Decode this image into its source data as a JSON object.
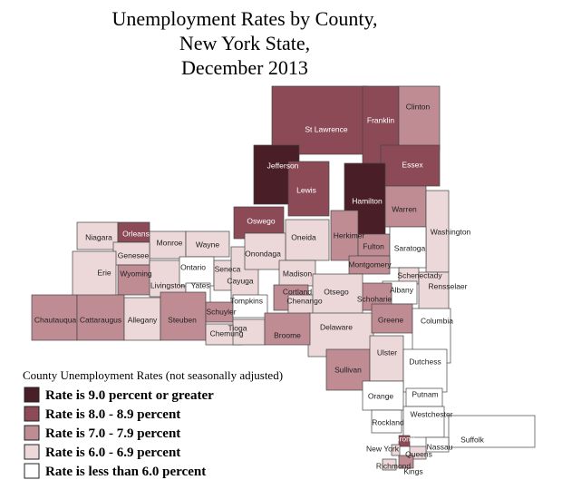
{
  "title_lines": [
    "Unemployment Rates by County,",
    "New York State,",
    "December 2013"
  ],
  "legend": {
    "title": "County Unemployment Rates (not seasonally adjusted)",
    "items": [
      {
        "label": "Rate is 9.0 percent or greater",
        "color": "#4a1e27"
      },
      {
        "label": "Rate is 8.0 - 8.9 percent",
        "color": "#8b4a55"
      },
      {
        "label": "Rate is 7.0 - 7.9 percent",
        "color": "#bf8c93"
      },
      {
        "label": "Rate is 6.0 - 6.9 percent",
        "color": "#ecd7d9"
      },
      {
        "label": "Rate is less than 6.0 percent",
        "color": "#ffffff"
      }
    ]
  },
  "counties": [
    {
      "name": "St Lawrence",
      "class": 1
    },
    {
      "name": "Franklin",
      "class": 1
    },
    {
      "name": "Clinton",
      "class": 2
    },
    {
      "name": "Essex",
      "class": 1
    },
    {
      "name": "Jefferson",
      "class": 0
    },
    {
      "name": "Lewis",
      "class": 1
    },
    {
      "name": "Hamilton",
      "class": 0
    },
    {
      "name": "Warren",
      "class": 2
    },
    {
      "name": "Washington",
      "class": 3
    },
    {
      "name": "Oswego",
      "class": 1
    },
    {
      "name": "Herkimer",
      "class": 2
    },
    {
      "name": "Oneida",
      "class": 3
    },
    {
      "name": "Fulton",
      "class": 2
    },
    {
      "name": "Saratoga",
      "class": 4
    },
    {
      "name": "Montgomery",
      "class": 2
    },
    {
      "name": "Schenectady",
      "class": 3
    },
    {
      "name": "Rensselaer",
      "class": 3
    },
    {
      "name": "Albany",
      "class": 4
    },
    {
      "name": "Schoharie",
      "class": 2
    },
    {
      "name": "Niagara",
      "class": 3
    },
    {
      "name": "Orleans",
      "class": 1
    },
    {
      "name": "Monroe",
      "class": 3
    },
    {
      "name": "Wayne",
      "class": 3
    },
    {
      "name": "Genesee",
      "class": 3
    },
    {
      "name": "Erie",
      "class": 3
    },
    {
      "name": "Wyoming",
      "class": 2
    },
    {
      "name": "Livingston",
      "class": 3
    },
    {
      "name": "Ontario",
      "class": 4
    },
    {
      "name": "Yates",
      "class": 4
    },
    {
      "name": "Seneca",
      "class": 3
    },
    {
      "name": "Cayuga",
      "class": 3
    },
    {
      "name": "Onondaga",
      "class": 3
    },
    {
      "name": "Madison",
      "class": 3
    },
    {
      "name": "Cortland",
      "class": 2
    },
    {
      "name": "Chenango",
      "class": 3
    },
    {
      "name": "Otsego",
      "class": 3
    },
    {
      "name": "Delaware",
      "class": 3
    },
    {
      "name": "Greene",
      "class": 2
    },
    {
      "name": "Columbia",
      "class": 4
    },
    {
      "name": "Chautauqua",
      "class": 2
    },
    {
      "name": "Cattaraugus",
      "class": 2
    },
    {
      "name": "Allegany",
      "class": 3
    },
    {
      "name": "Steuben",
      "class": 2
    },
    {
      "name": "Schuyler",
      "class": 2
    },
    {
      "name": "Tompkins",
      "class": 4
    },
    {
      "name": "Chemung",
      "class": 3
    },
    {
      "name": "Tioga",
      "class": 3
    },
    {
      "name": "Broome",
      "class": 2
    },
    {
      "name": "Sullivan",
      "class": 2
    },
    {
      "name": "Ulster",
      "class": 3
    },
    {
      "name": "Dutchess",
      "class": 4
    },
    {
      "name": "Orange",
      "class": 4
    },
    {
      "name": "Putnam",
      "class": 4
    },
    {
      "name": "Rockland",
      "class": 4
    },
    {
      "name": "Westchester",
      "class": 4
    },
    {
      "name": "Suffolk",
      "class": 4
    },
    {
      "name": "Bronx",
      "class": 1
    },
    {
      "name": "Nassau",
      "class": 4
    },
    {
      "name": "New York",
      "class": 3
    },
    {
      "name": "Queens",
      "class": 3
    },
    {
      "name": "Richmond",
      "class": 3
    },
    {
      "name": "Kings",
      "class": 2
    }
  ]
}
